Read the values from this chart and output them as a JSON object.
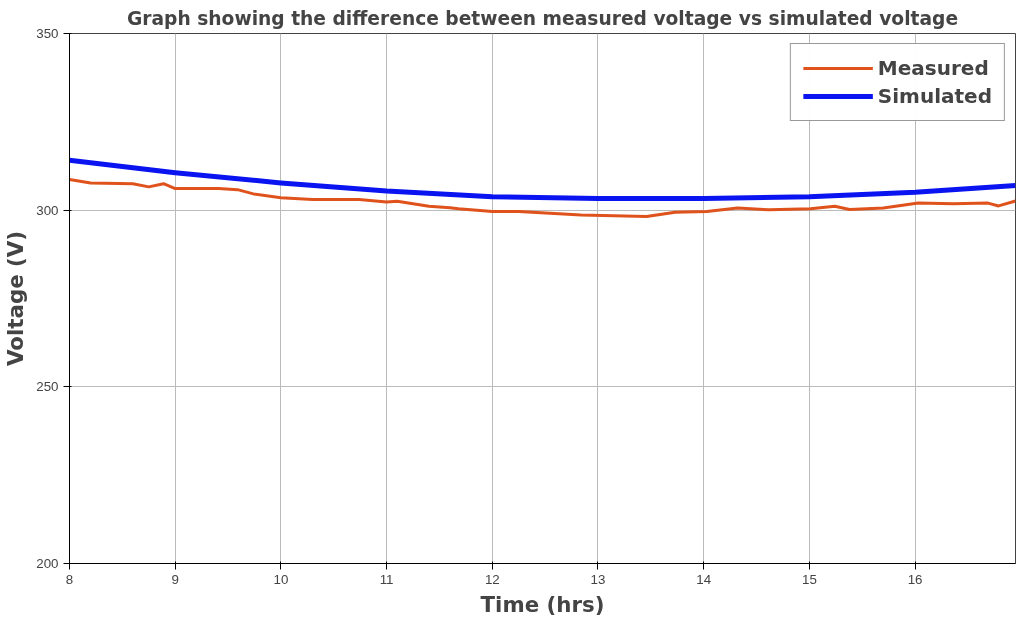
{
  "chart_data": {
    "type": "line",
    "title": "Graph showing the difference between measured voltage vs simulated voltage",
    "xlabel": "Time (hrs)",
    "ylabel": "Voltage (V)",
    "xlim": [
      8,
      16.95
    ],
    "xticks": [
      8,
      9,
      10,
      11,
      12,
      13,
      14,
      15,
      16
    ],
    "ylim": [
      200,
      350
    ],
    "yticks": [
      200,
      250,
      300,
      350
    ],
    "grid": true,
    "legend": "top right",
    "series": [
      {
        "name": "Measured",
        "color": "#e0521c",
        "x": [
          8,
          8.2,
          8.6,
          8.75,
          8.89,
          9.0,
          9.41,
          9.59,
          9.74,
          10.0,
          10.3,
          10.74,
          11.0,
          11.1,
          11.4,
          11.6,
          11.68,
          12.0,
          12.25,
          12.84,
          13.46,
          13.73,
          14.03,
          14.32,
          14.62,
          15.01,
          15.24,
          15.38,
          15.7,
          16.03,
          16.36,
          16.69,
          16.79,
          16.95
        ],
        "values": [
          308.7,
          307.7,
          307.5,
          306.6,
          307.5,
          306.1,
          306.1,
          305.8,
          304.6,
          303.5,
          303.0,
          303.0,
          302.3,
          302.5,
          301.1,
          300.7,
          300.4,
          299.6,
          299.6,
          298.6,
          298.2,
          299.4,
          299.6,
          300.6,
          300.1,
          300.4,
          301.1,
          300.2,
          300.6,
          302.0,
          301.8,
          302.0,
          301.2,
          302.6
        ]
      },
      {
        "name": "Simulated",
        "color": "#0a14f0",
        "x": [
          8,
          9,
          10,
          11,
          12,
          13,
          14,
          15,
          16,
          16.95
        ],
        "values": [
          314.1,
          310.6,
          307.7,
          305.4,
          303.8,
          303.3,
          303.3,
          303.8,
          305.1,
          307.0
        ]
      }
    ]
  }
}
